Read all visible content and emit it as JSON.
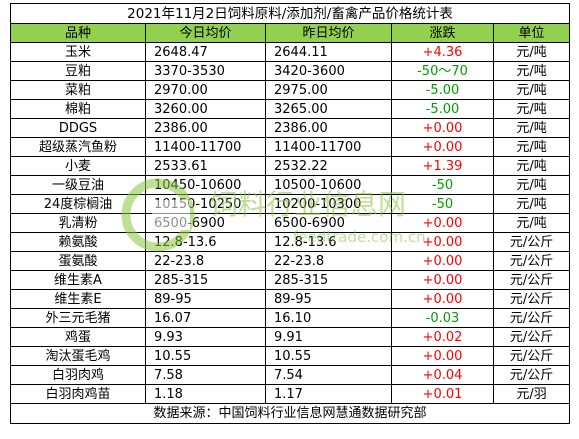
{
  "title": "2021年11月2日饲料原料/添加剂/畜禽产品价格统计表",
  "columns": [
    "品种",
    "今日均价",
    "昨日均价",
    "涨跌",
    "单位"
  ],
  "colors": {
    "header_bg": "#92d050",
    "up": "#ff0000",
    "down": "#00a000",
    "text": "#000000"
  },
  "rows": [
    {
      "name": "玉米",
      "today": "2648.47",
      "yesterday": "2644.11",
      "change": "+4.36",
      "dir": "up",
      "unit": "元/吨"
    },
    {
      "name": "豆粕",
      "today": "3370-3530",
      "yesterday": "3420-3600",
      "change": "-50～70",
      "dir": "down",
      "unit": "元/吨"
    },
    {
      "name": "菜粕",
      "today": "2970.00",
      "yesterday": "2975.00",
      "change": "-5.00",
      "dir": "down",
      "unit": "元/吨"
    },
    {
      "name": "棉粕",
      "today": "3260.00",
      "yesterday": "3265.00",
      "change": "-5.00",
      "dir": "down",
      "unit": "元/吨"
    },
    {
      "name": "DDGS",
      "today": "2386.00",
      "yesterday": "2386.00",
      "change": "+0.00",
      "dir": "up",
      "unit": "元/吨"
    },
    {
      "name": "超级蒸汽鱼粉",
      "today": "11400-11700",
      "yesterday": "11400-11700",
      "change": "+0.00",
      "dir": "up",
      "unit": "元/吨"
    },
    {
      "name": "小麦",
      "today": "2533.61",
      "yesterday": "2532.22",
      "change": "+1.39",
      "dir": "up",
      "unit": "元/吨"
    },
    {
      "name": "一级豆油",
      "today": "10450-10600",
      "yesterday": "10500-10600",
      "change": "-50",
      "dir": "down",
      "unit": "元/吨"
    },
    {
      "name": "24度棕榈油",
      "today": "10150-10250",
      "yesterday": "10200-10300",
      "change": "-50",
      "dir": "down",
      "unit": "元/吨"
    },
    {
      "name": "乳清粉",
      "today": "6500-6900",
      "yesterday": "6500-6900",
      "change": "+0.00",
      "dir": "up",
      "unit": "元/吨"
    },
    {
      "name": "赖氨酸",
      "today": "12.8-13.6",
      "yesterday": "12.8-13.6",
      "change": "+0.00",
      "dir": "up",
      "unit": "元/公斤"
    },
    {
      "name": "蛋氨酸",
      "today": "22-23.8",
      "yesterday": "22-23.8",
      "change": "+0.00",
      "dir": "up",
      "unit": "元/公斤"
    },
    {
      "name": "维生素A",
      "today": "285-315",
      "yesterday": "285-315",
      "change": "+0.00",
      "dir": "up",
      "unit": "元/公斤"
    },
    {
      "name": "维生素E",
      "today": "89-95",
      "yesterday": "89-95",
      "change": "+0.00",
      "dir": "up",
      "unit": "元/公斤"
    },
    {
      "name": "外三元毛猪",
      "today": "16.07",
      "yesterday": "16.10",
      "change": "-0.03",
      "dir": "down",
      "unit": "元/公斤"
    },
    {
      "name": "鸡蛋",
      "today": "9.93",
      "yesterday": "9.91",
      "change": "+0.02",
      "dir": "up",
      "unit": "元/公斤"
    },
    {
      "name": "淘汰蛋毛鸡",
      "today": "10.55",
      "yesterday": "10.55",
      "change": "+0.00",
      "dir": "up",
      "unit": "元/公斤"
    },
    {
      "name": "白羽肉鸡",
      "today": "7.58",
      "yesterday": "7.54",
      "change": "+0.04",
      "dir": "up",
      "unit": "元/公斤"
    },
    {
      "name": "白羽肉鸡苗",
      "today": "1.18",
      "yesterday": "1.17",
      "change": "+0.01",
      "dir": "up",
      "unit": "元/羽"
    }
  ],
  "footer": "数据来源：中国饲料行业信息网慧通数据研究部",
  "watermark": {
    "site_name": "饲料行业信息网",
    "domain": "feedtrade.com.cn",
    "color": "#8cc63f"
  }
}
